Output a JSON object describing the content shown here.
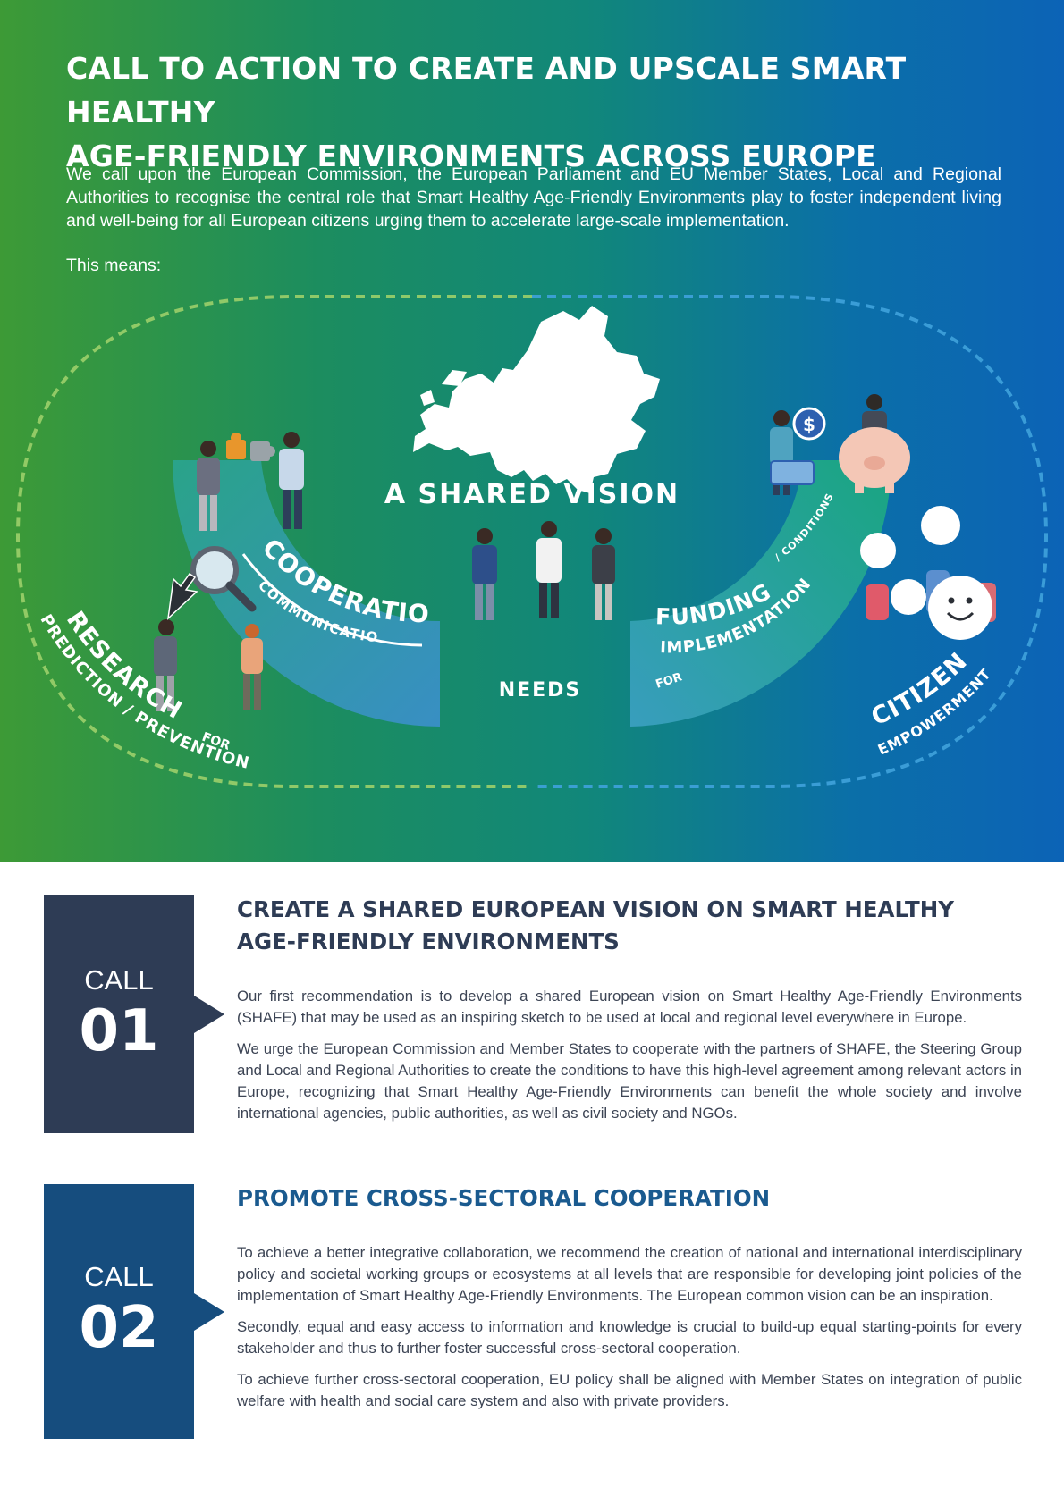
{
  "hero": {
    "title_line1": "CALL TO ACTION TO CREATE AND UPSCALE SMART HEALTHY",
    "title_line2": "AGE-FRIENDLY ENVIRONMENTS ACROSS EUROPE",
    "intro": "We call upon the European Commission, the European Parliament and EU Member States, Local and Regional Authorities to recognise the central role that Smart Healthy Age-Friendly Environments play to foster independent living and well-being for all European citizens urging them to accelerate large-scale implementation.",
    "means": "This means:"
  },
  "diagram": {
    "shared_vision": "A SHARED VISION",
    "needs": "NEEDS",
    "cooperation": "COOPERATION",
    "communication": "COMMUNICATION",
    "funding": "FUNDING",
    "conditions": "/ CONDITIONS",
    "for_implementation_for": "FOR",
    "implementation": "IMPLEMENTATION",
    "research": "RESEARCH",
    "research_for": "FOR",
    "prediction": "PREDICTION / PREVENTION",
    "citizen": "CITIZEN",
    "empowerment": "EMPOWERMENT",
    "currency_symbol": "$",
    "icons": [
      "europe-map-icon",
      "puzzle-icon",
      "magnifier-icon",
      "cursor-icon",
      "coin-icon",
      "card-icon",
      "piggy-bank-icon",
      "smiley-icon"
    ],
    "colors": {
      "band_left": "#2e9ea0",
      "band_right": "#38a8b8",
      "dash_left": "#9ccf6a",
      "dash_right": "#3fa2dc"
    }
  },
  "calls": [
    {
      "label": "CALL",
      "number": "01",
      "title_line1": "CREATE A SHARED EUROPEAN VISION ON SMART HEALTHY",
      "title_line2": "AGE-FRIENDLY ENVIRONMENTS",
      "paragraphs": [
        "Our first recommendation is to develop a shared European vision on Smart Healthy Age-Friendly Environments (SHAFE) that may be used as an inspiring sketch to be used at local and regional level everywhere in Europe.",
        "We urge the European Commission and Member States to cooperate with the partners of SHAFE, the Steering Group and Local and Regional Authorities to create the conditions to have this high-level agreement among relevant actors in Europe, recognizing that Smart Healthy Age-Friendly Environments can benefit the whole society and involve international agencies, public authorities, as well as civil society and NGOs."
      ],
      "color": "#2e3c55"
    },
    {
      "label": "CALL",
      "number": "02",
      "title_line1": "PROMOTE CROSS-SECTORAL COOPERATION",
      "paragraphs": [
        "To achieve a better integrative collaboration, we recommend the creation of national and international interdisciplinary policy and societal working groups or ecosystems at all levels that are responsible for developing joint policies of the implementation of Smart Healthy Age-Friendly Environments. The European common vision can be an inspiration.",
        "Secondly, equal and easy access to information and knowledge is crucial to build-up equal starting-points for every stakeholder and thus to further foster successful cross-sectoral cooperation.",
        "To achieve further cross-sectoral cooperation, EU policy shall be aligned with Member States on integration of public welfare with health and social care system and also with private providers."
      ],
      "color": "#164d7e"
    }
  ]
}
